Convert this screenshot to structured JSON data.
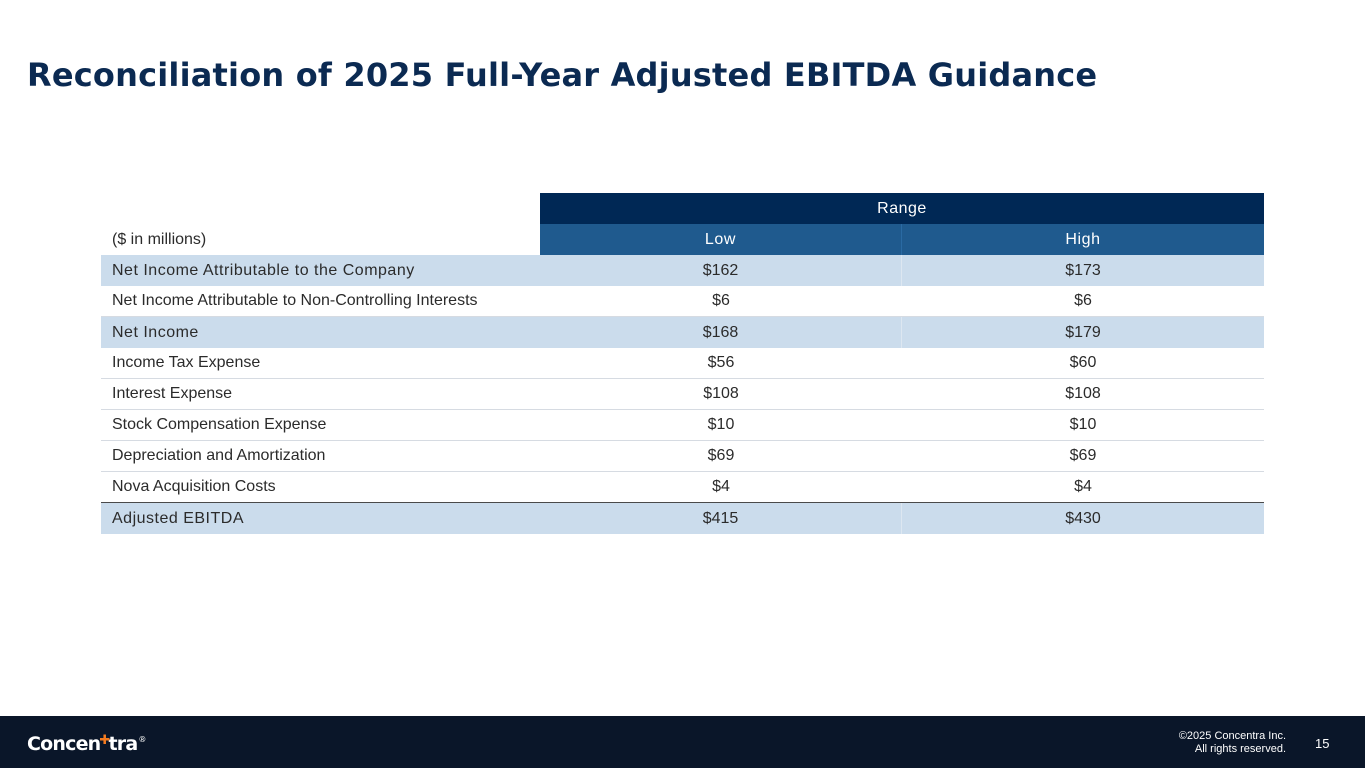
{
  "slide": {
    "title": "Reconciliation of 2025 Full-Year Adjusted EBITDA Guidance"
  },
  "table": {
    "range_label": "Range",
    "units_label": "($ in millions)",
    "columns": [
      "Low",
      "High"
    ],
    "rows": [
      {
        "label": "Net Income Attributable to the Company",
        "low": "$162",
        "high": "$173",
        "shaded": true
      },
      {
        "label": "Net Income Attributable to Non-Controlling Interests",
        "low": "$6",
        "high": "$6",
        "shaded": false
      },
      {
        "label": "Net Income",
        "low": "$168",
        "high": "$179",
        "shaded": true
      },
      {
        "label": "Income Tax Expense",
        "low": "$56",
        "high": "$60",
        "shaded": false
      },
      {
        "label": "Interest Expense",
        "low": "$108",
        "high": "$108",
        "shaded": false
      },
      {
        "label": "Stock Compensation Expense",
        "low": "$10",
        "high": "$10",
        "shaded": false
      },
      {
        "label": "Depreciation and Amortization",
        "low": "$69",
        "high": "$69",
        "shaded": false
      },
      {
        "label": "Nova Acquisition Costs",
        "low": "$4",
        "high": "$4",
        "shaded": false
      },
      {
        "label": "Adjusted EBITDA",
        "low": "$415",
        "high": "$430",
        "shaded": true
      }
    ]
  },
  "footer": {
    "logo_pre": "Concen",
    "logo_post": "tra",
    "logo_reg": "®",
    "copyright_line1": "©2025 Concentra Inc.",
    "copyright_line2": "All rights reserved.",
    "page_number": "15"
  },
  "colors": {
    "title": "#0b2a52",
    "header_dark": "#002855",
    "header_mid": "#1f5a8e",
    "row_shade": "#cbdcec",
    "footer_bg": "#0a1629",
    "logo_accent": "#f47b20"
  }
}
